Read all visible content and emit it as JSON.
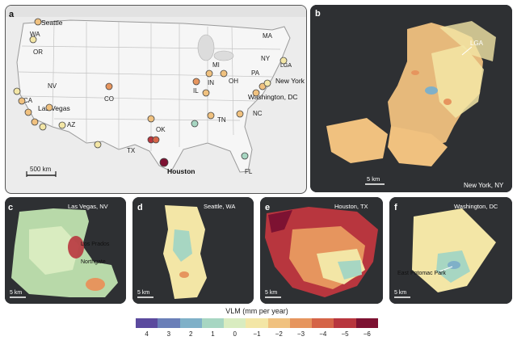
{
  "panels": {
    "a": {
      "letter": "a",
      "state_labels": [
        "WA",
        "OR",
        "NV",
        "CA",
        "AZ",
        "CO",
        "TX",
        "OK",
        "IL",
        "IN",
        "MI",
        "OH",
        "PA",
        "NY",
        "MA",
        "TN",
        "NC",
        "FL"
      ],
      "city_labels": [
        "Seattle",
        "Las Vegas",
        "Houston",
        "New York",
        "Washington, DC",
        "LGA"
      ],
      "scale_label": "500 km"
    },
    "b": {
      "letter": "b",
      "title": "New York, NY",
      "callout": "LGA",
      "scale_label": "5 km"
    },
    "c": {
      "letter": "c",
      "title": "Las Vegas, NV",
      "callouts": [
        "Los Prados",
        "Northgate"
      ],
      "scale_label": "5 km"
    },
    "d": {
      "letter": "d",
      "title": "Seattle, WA",
      "scale_label": "5 km"
    },
    "e": {
      "letter": "e",
      "title": "Houston, TX",
      "scale_label": "5 km"
    },
    "f": {
      "letter": "f",
      "title": "Washington, DC",
      "callout": "East Potomac Park",
      "scale_label": "5 km"
    }
  },
  "colorbar": {
    "title": "VLM (mm per year)",
    "ticks": [
      "4",
      "3",
      "2",
      "1",
      "0",
      "−1",
      "−2",
      "−3",
      "−4",
      "−5",
      "−6"
    ],
    "colors": [
      "#5b4a9e",
      "#6a7fb8",
      "#7fb0c8",
      "#a7d6c2",
      "#d9ecc0",
      "#f3e6a6",
      "#f0c17f",
      "#e6955e",
      "#d56447",
      "#b8363e",
      "#7d1232"
    ]
  },
  "legend_colors": {
    "subsidence_high": "#7d1232",
    "subsidence_mid": "#d56447",
    "stable": "#f3e6a6",
    "uplift": "#7fb0c8",
    "map_bg_dark": "#2e3033",
    "us_land": "#f4f4f4"
  }
}
